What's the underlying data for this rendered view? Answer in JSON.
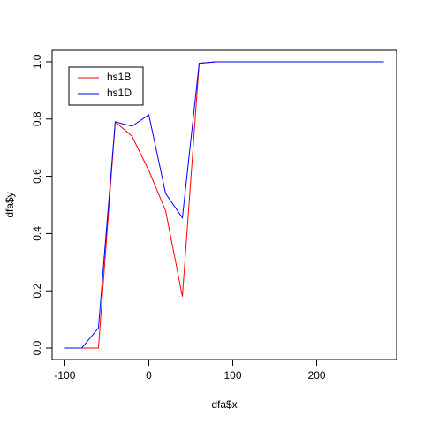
{
  "chart_data": {
    "type": "line",
    "x_label": "dfa$x",
    "y_label": "dfa$y",
    "x": [
      -100,
      -80,
      -60,
      -40,
      -20,
      0,
      20,
      40,
      60,
      80,
      100,
      120,
      140,
      160,
      180,
      200,
      220,
      240,
      260,
      280
    ],
    "series": [
      {
        "name": "hs1B",
        "color": "#ff0000",
        "values": [
          0,
          0,
          0,
          0.79,
          0.74,
          0.62,
          0.48,
          0.18,
          0.995,
          1,
          1,
          1,
          1,
          1,
          1,
          1,
          1,
          1,
          1,
          1
        ]
      },
      {
        "name": "hs1D",
        "color": "#0000ff",
        "values": [
          0,
          0,
          0.07,
          0.79,
          0.775,
          0.815,
          0.54,
          0.455,
          0.995,
          1,
          1,
          1,
          1,
          1,
          1,
          1,
          1,
          1,
          1,
          1
        ]
      }
    ],
    "xlim": [
      -115.2,
      295.2
    ],
    "xticks": [
      -100,
      0,
      100,
      200
    ],
    "ylim": [
      -0.04,
      1.04
    ],
    "yticks": [
      {
        "value": 0,
        "label": "0.0"
      },
      0.2,
      0.4,
      0.6,
      0.8,
      {
        "value": 1,
        "label": "1.0"
      }
    ],
    "grid": false,
    "legend": "topleft"
  }
}
